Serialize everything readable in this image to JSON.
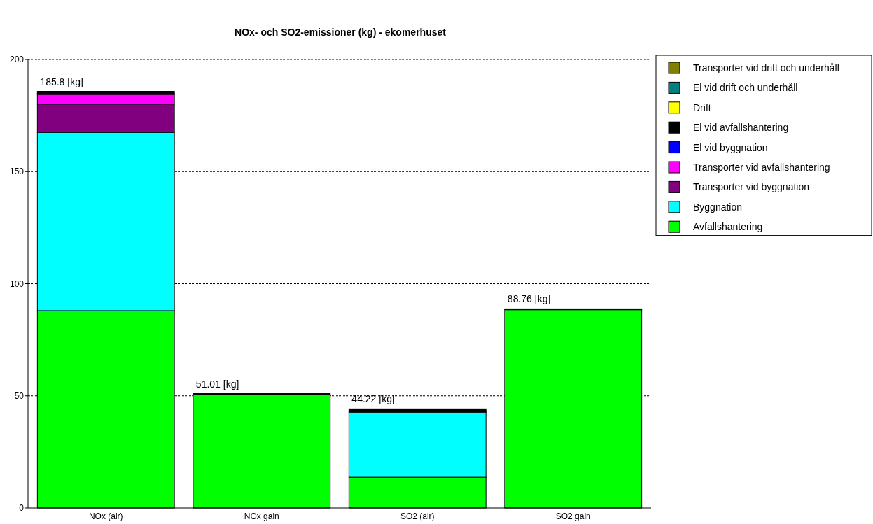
{
  "chart_data": {
    "type": "bar",
    "title": "NOx- och SO2-emissioner (kg) - ekomerhuset",
    "categories": [
      "NOx (air)",
      "NOx gain",
      "SO2 (air)",
      "SO2 gain"
    ],
    "stacked": true,
    "ylim": [
      0,
      200
    ],
    "yticks": [
      0,
      50,
      100,
      150,
      200
    ],
    "grid": "y",
    "legend": "top right",
    "totals": [
      "185.8 [kg]",
      "51.01 [kg]",
      "44.22 [kg]",
      "88.76 [kg]"
    ],
    "series": [
      {
        "name": "Avfallshantering",
        "color": "#00ff00",
        "values": [
          88.0,
          50.6,
          13.7,
          88.4
        ]
      },
      {
        "name": "Byggnation",
        "color": "#00ffff",
        "values": [
          79.5,
          0,
          29.0,
          0
        ]
      },
      {
        "name": "Transporter vid byggnation",
        "color": "#800080",
        "values": [
          12.6,
          0,
          0.3,
          0
        ]
      },
      {
        "name": "Transporter vid avfallshantering",
        "color": "#ff00ff",
        "values": [
          4.3,
          0,
          0,
          0
        ]
      },
      {
        "name": "El vid byggnation",
        "color": "#0000ff",
        "values": [
          0.4,
          0,
          0,
          0
        ]
      },
      {
        "name": "El vid avfallshantering",
        "color": "#000000",
        "values": [
          1.0,
          0.4,
          1.2,
          0.4
        ]
      },
      {
        "name": "Drift",
        "color": "#ffff00",
        "values": [
          0,
          0,
          0,
          0
        ]
      },
      {
        "name": "El vid drift och underhåll",
        "color": "#008080",
        "values": [
          0,
          0,
          0,
          0
        ]
      },
      {
        "name": "Transporter vid drift och underhåll",
        "color": "#808000",
        "values": [
          0,
          0,
          0,
          0
        ]
      }
    ]
  }
}
